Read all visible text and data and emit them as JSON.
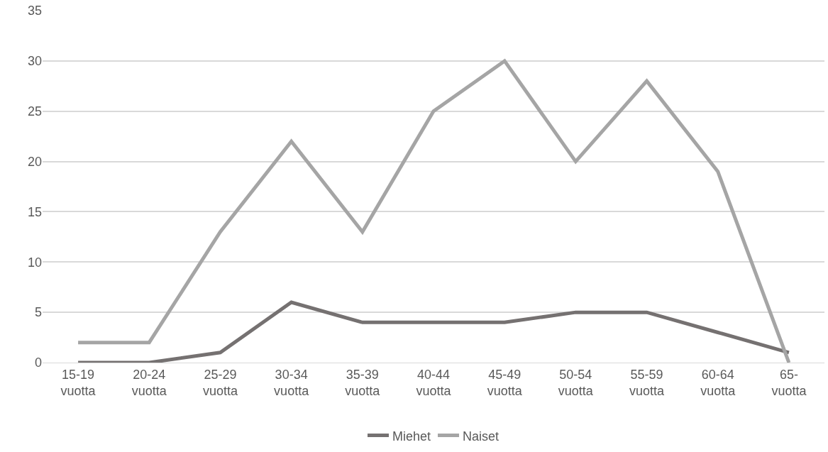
{
  "chart_data": {
    "type": "line",
    "categories": [
      "15-19 vuotta",
      "20-24 vuotta",
      "25-29 vuotta",
      "30-34 vuotta",
      "35-39 vuotta",
      "40-44 vuotta",
      "45-49 vuotta",
      "50-54 vuotta",
      "55-59 vuotta",
      "60-64 vuotta",
      "65- vuotta"
    ],
    "series": [
      {
        "name": "Miehet",
        "color": "#757171",
        "values": [
          0,
          0,
          1,
          6,
          4,
          4,
          4,
          5,
          5,
          3,
          1
        ]
      },
      {
        "name": "Naiset",
        "color": "#a5a5a5",
        "values": [
          2,
          2,
          13,
          22,
          13,
          25,
          30,
          20,
          28,
          19,
          0
        ]
      }
    ],
    "ylim": [
      0,
      35
    ],
    "yticks": [
      0,
      5,
      10,
      15,
      20,
      25,
      30,
      35
    ],
    "grid": "y",
    "legend": "bottom",
    "marker": "none",
    "line_style": "solid"
  }
}
